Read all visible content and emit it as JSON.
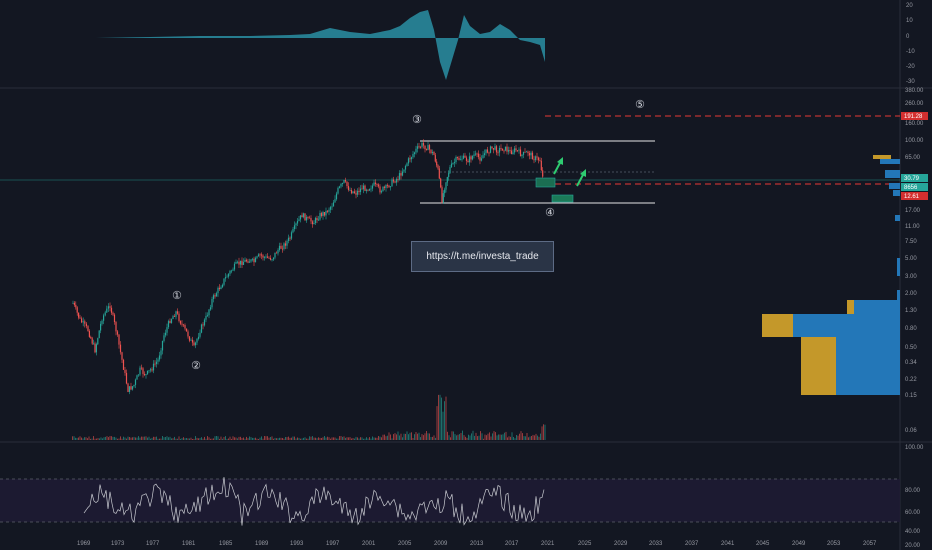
{
  "link_box": {
    "text": "https://t.me/investa_trade"
  },
  "wave_labels": [
    "①",
    "②",
    "③",
    "④",
    "⑤"
  ],
  "y_axis_top": [
    "20",
    "10",
    "0",
    "-10",
    "-20",
    "-30"
  ],
  "y_axis_main": [
    "380.00",
    "260.00",
    "160.00",
    "100.00",
    "65.00",
    "17.00",
    "11.00",
    "7.50",
    "5.00",
    "3.00",
    "2.00",
    "1.30",
    "0.80",
    "0.50",
    "0.34",
    "0.22",
    "0.15",
    "0.06"
  ],
  "y_axis_rsi": [
    "100.00",
    "80.00",
    "60.00",
    "40.00",
    "20.00"
  ],
  "price_tags": [
    {
      "text": "191.28",
      "color": "#d32f2f"
    },
    {
      "text": "30.79",
      "color": "#26a69a"
    },
    {
      "text": "8656",
      "color": "#26a69a"
    },
    {
      "text": "12.61",
      "color": "#d32f2f"
    }
  ],
  "x_axis": [
    "1969",
    "1973",
    "1977",
    "1981",
    "1985",
    "1989",
    "1993",
    "1997",
    "2001",
    "2005",
    "2009",
    "2013",
    "2017",
    "2021",
    "2025",
    "2029",
    "2033",
    "2037",
    "2041",
    "2045",
    "2049",
    "2053",
    "2057"
  ],
  "colors": {
    "background": "#131722",
    "candle_up": "#26a69a",
    "candle_down": "#ef5350",
    "oscillator": "#2a8fa3",
    "rsi_line": "#c9cbd1",
    "target_line": "#e53935",
    "arrow": "#2ecc71",
    "volume_profile_blue": "#2377b8",
    "volume_profile_gold": "#c4982a"
  }
}
